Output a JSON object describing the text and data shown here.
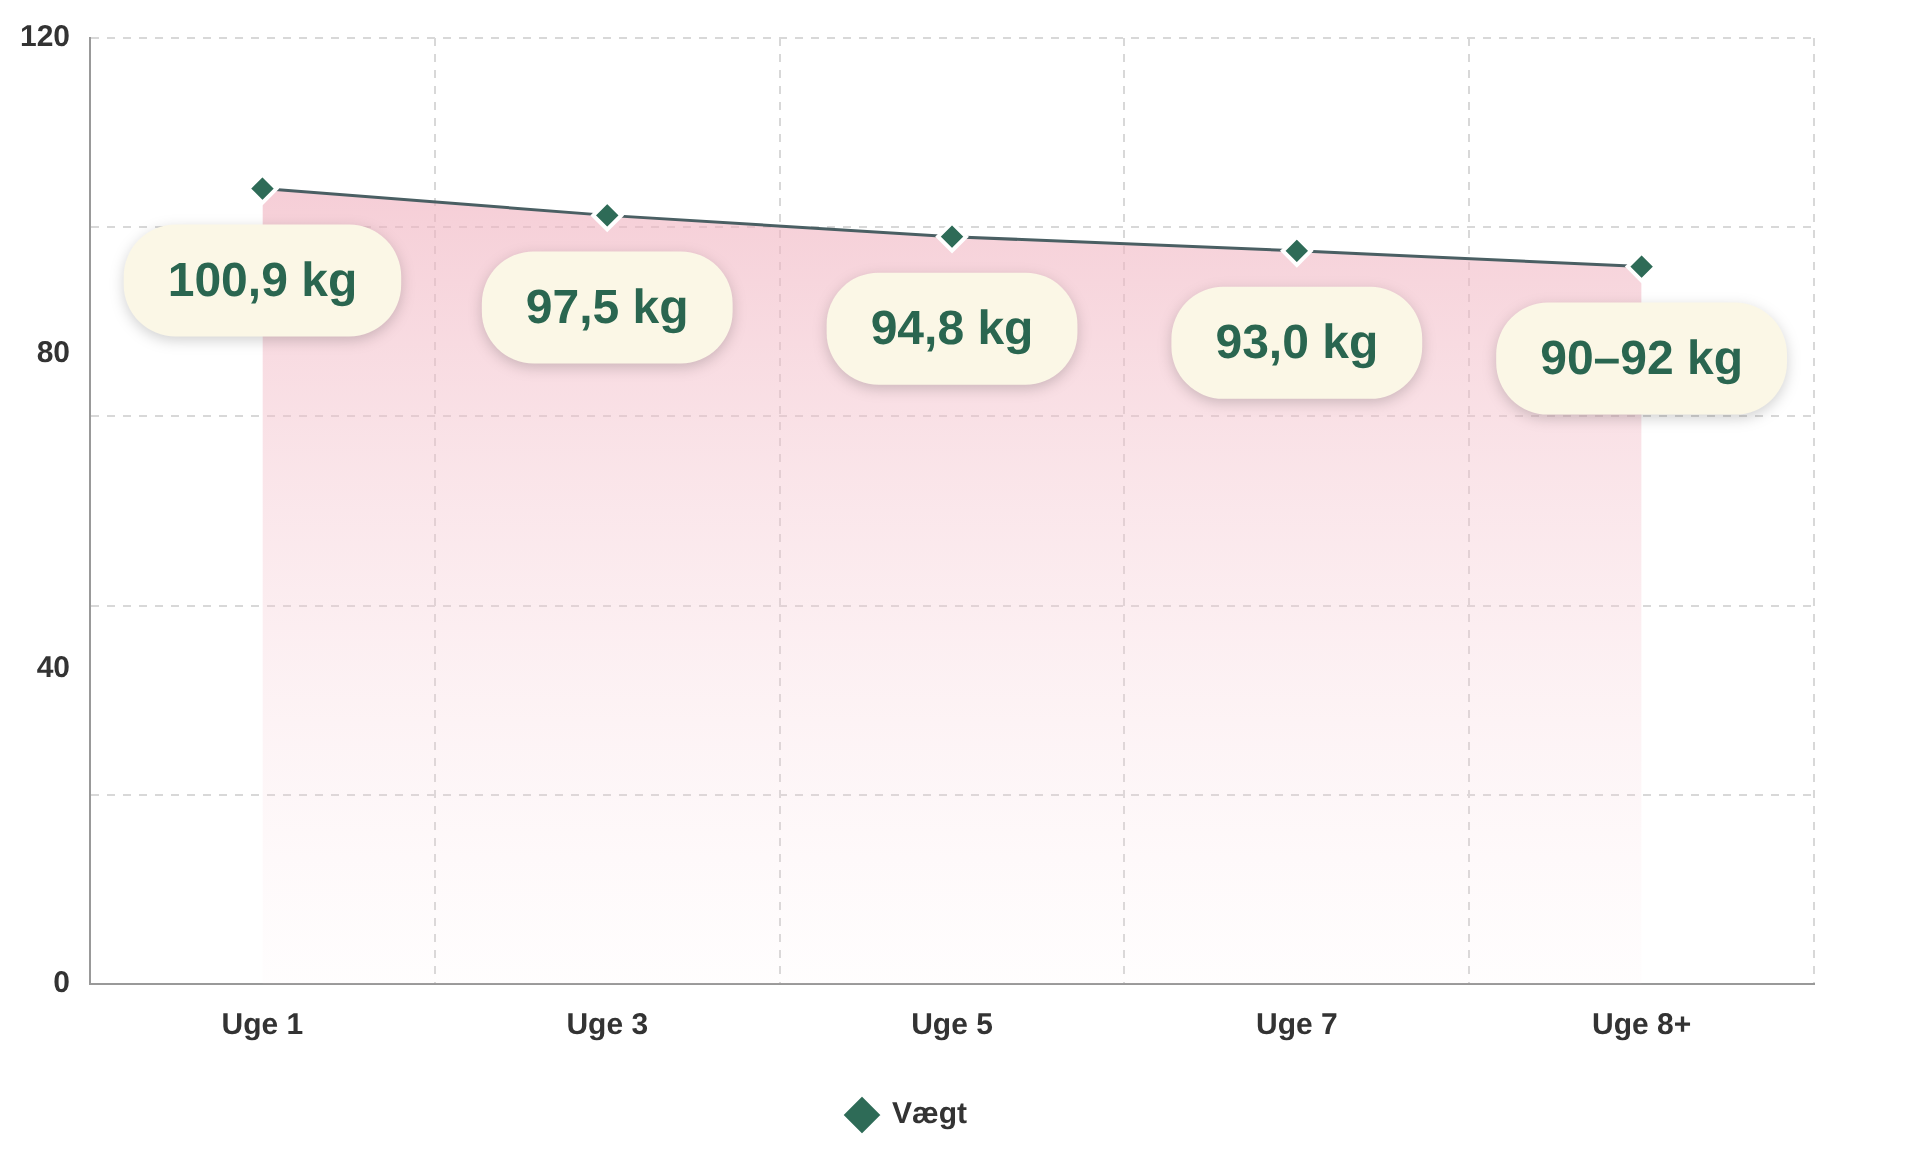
{
  "chart_data": {
    "type": "area",
    "categories": [
      "Uge 1",
      "Uge 3",
      "Uge 5",
      "Uge 7",
      "Uge 8+"
    ],
    "series": [
      {
        "name": "Vægt",
        "color": "#2e6b57",
        "values": [
          100.9,
          97.5,
          94.8,
          93.0,
          91
        ],
        "value_labels": [
          "100,9 kg",
          "97,5 kg",
          "94,8 kg",
          "93,0 kg",
          "90–92 kg"
        ]
      }
    ],
    "ylim": [
      0,
      120
    ],
    "yticks": [
      0,
      {
        "value": 24,
        "label": null
      },
      40,
      {
        "value": 48,
        "label": null
      },
      {
        "value": 72,
        "label": null
      },
      80,
      {
        "value": 96,
        "label": null
      },
      120
    ],
    "grid": true,
    "legend": "bottom",
    "marker": "diamond",
    "line_style": "solid"
  }
}
